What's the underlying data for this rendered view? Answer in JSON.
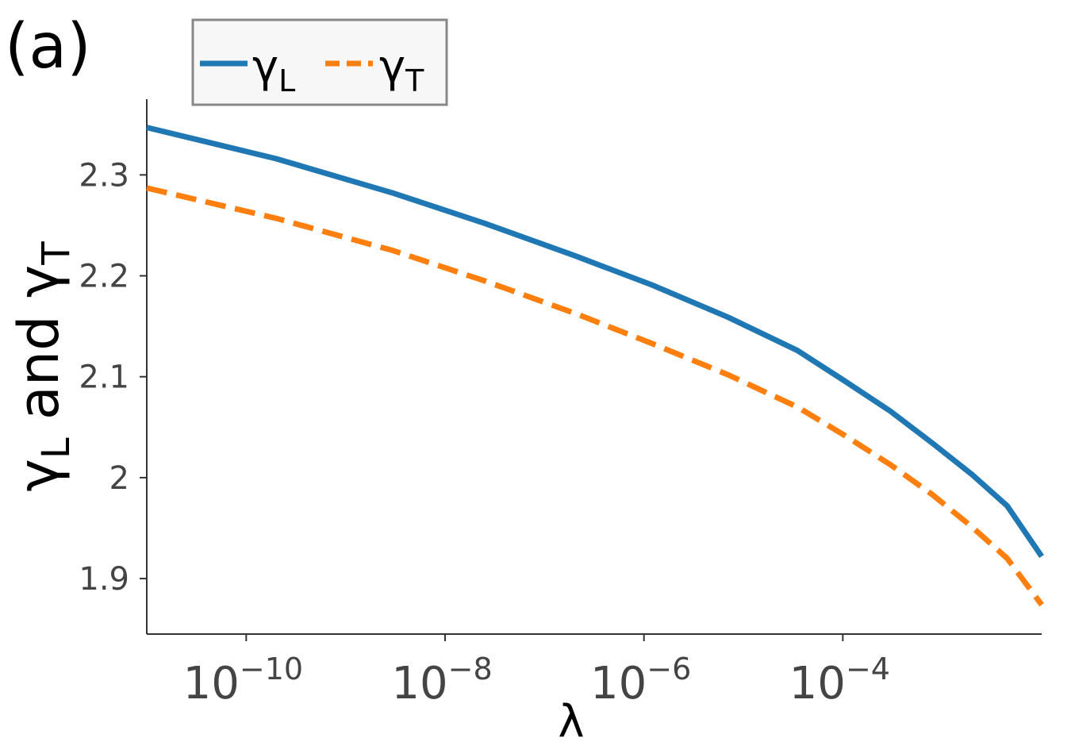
{
  "panel_label": "(a)",
  "chart_data": {
    "type": "line",
    "xscale": "log",
    "xlim": [
      1e-11,
      0.01
    ],
    "ylim": [
      1.845,
      2.375
    ],
    "xlabel": "λ",
    "ylabel": {
      "base": "γ",
      "sub_l": "L",
      "mid": "and",
      "base2": "γ",
      "sub_t": "T"
    },
    "x_ticks": [
      {
        "value": 1e-10,
        "base": "10",
        "exp": "−10"
      },
      {
        "value": 1e-08,
        "base": "10",
        "exp": "−8"
      },
      {
        "value": 1e-06,
        "base": "10",
        "exp": "−6"
      },
      {
        "value": 0.0001,
        "base": "10",
        "exp": "−4"
      }
    ],
    "y_ticks": [
      {
        "value": 1.9,
        "label": "1.9"
      },
      {
        "value": 2.0,
        "label": "2"
      },
      {
        "value": 2.1,
        "label": "2.1"
      },
      {
        "value": 2.2,
        "label": "2.2"
      },
      {
        "value": 2.3,
        "label": "2.3"
      }
    ],
    "legend_position": "top-left",
    "series": [
      {
        "name": "γ_L",
        "legend_base": "γ",
        "legend_sub": "L",
        "color": "#1f77b4",
        "style": "solid",
        "x": [
          1e-11,
          2e-10,
          3e-09,
          2.5e-08,
          2e-07,
          1.2e-06,
          7e-06,
          3.5e-05,
          0.0001,
          0.0003,
          0.0008,
          0.002,
          0.0045,
          0.01
        ],
        "y": [
          2.347,
          2.316,
          2.282,
          2.252,
          2.22,
          2.191,
          2.159,
          2.126,
          2.097,
          2.066,
          2.034,
          2.003,
          1.972,
          1.922
        ]
      },
      {
        "name": "γ_T",
        "legend_base": "γ",
        "legend_sub": "T",
        "color": "#ff7f0e",
        "style": "dashed",
        "x": [
          1e-11,
          2e-10,
          3e-09,
          2.5e-08,
          2e-07,
          1.2e-06,
          7e-06,
          3.5e-05,
          0.0001,
          0.0003,
          0.0008,
          0.002,
          0.0045,
          0.01
        ],
        "y": [
          2.287,
          2.257,
          2.225,
          2.195,
          2.163,
          2.133,
          2.102,
          2.07,
          2.043,
          2.013,
          1.983,
          1.951,
          1.92,
          1.874
        ]
      }
    ]
  }
}
